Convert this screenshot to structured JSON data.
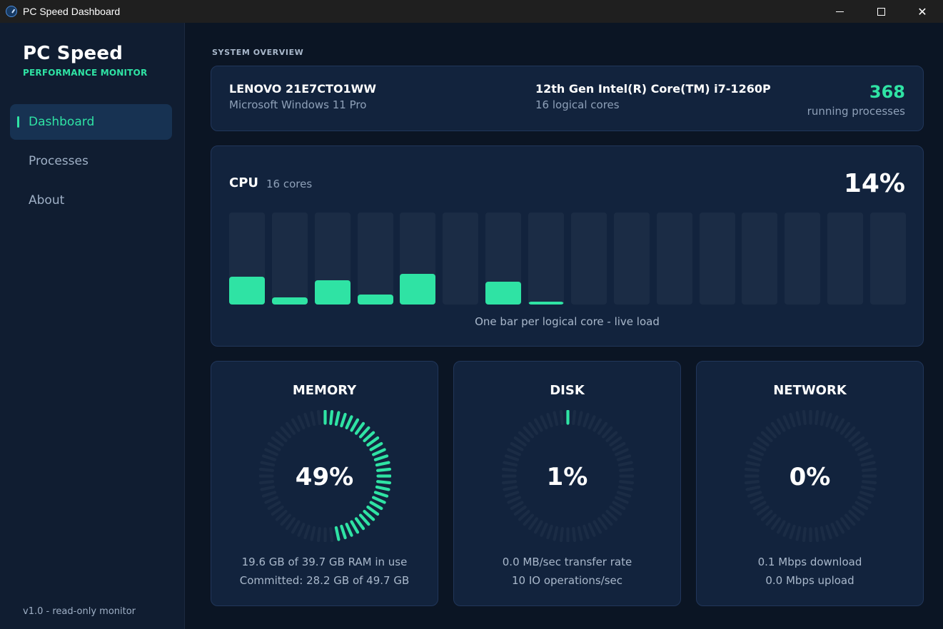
{
  "window": {
    "title": "PC Speed Dashboard",
    "minimize": "minimize",
    "maximize": "maximize",
    "close": "✕"
  },
  "sidebar": {
    "brand_title": "PC Speed",
    "brand_subtitle": "PERFORMANCE MONITOR",
    "items": [
      {
        "label": "Dashboard",
        "active": true
      },
      {
        "label": "Processes",
        "active": false
      },
      {
        "label": "About",
        "active": false
      }
    ],
    "version": "v1.0 - read-only monitor"
  },
  "overview": {
    "section_label": "SYSTEM OVERVIEW",
    "device_name": "LENOVO 21E7CTO1WW",
    "os": "Microsoft Windows 11 Pro",
    "cpu_name": "12th Gen Intel(R) Core(TM) i7-1260P",
    "logical_cores": "16 logical cores",
    "process_count": "368",
    "process_label": "running processes"
  },
  "cpu": {
    "title": "CPU",
    "cores_label": "16 cores",
    "percent_label": "14%",
    "caption": "One bar per logical core - live load",
    "core_loads": [
      30,
      8,
      26,
      11,
      33,
      0,
      25,
      3,
      0,
      0,
      0,
      0,
      0,
      0,
      0,
      0
    ]
  },
  "colors": {
    "accent": "#2fe3a4",
    "track": "#1b2c45",
    "card": "#12233d"
  },
  "metrics": [
    {
      "title": "MEMORY",
      "value_label": "49%",
      "percent": 49,
      "line1": "19.6 GB of 39.7 GB RAM in use",
      "line2": "Committed: 28.2 GB of 49.7 GB"
    },
    {
      "title": "DISK",
      "value_label": "1%",
      "percent": 1,
      "line1": "0.0 MB/sec transfer rate",
      "line2": "10 IO operations/sec"
    },
    {
      "title": "NETWORK",
      "value_label": "0%",
      "percent": 0,
      "line1": "0.1 Mbps download",
      "line2": "0.0 Mbps upload"
    }
  ]
}
